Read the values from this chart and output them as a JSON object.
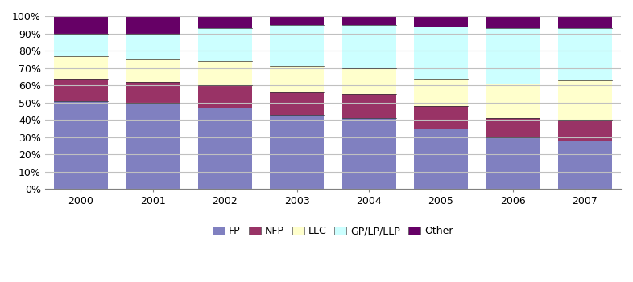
{
  "years": [
    "2000",
    "2001",
    "2002",
    "2003",
    "2004",
    "2005",
    "2006",
    "2007"
  ],
  "segments": [
    "FP",
    "NFP",
    "LLC",
    "GP/LP/LLP",
    "Other"
  ],
  "values": {
    "FP": [
      51,
      50,
      47,
      43,
      41,
      35,
      30,
      28
    ],
    "NFP": [
      13,
      12,
      13,
      13,
      14,
      13,
      11,
      12
    ],
    "LLC": [
      13,
      13,
      14,
      15,
      15,
      16,
      20,
      23
    ],
    "GP/LP/LLP": [
      13,
      15,
      19,
      24,
      25,
      30,
      32,
      30
    ],
    "Other": [
      10,
      10,
      7,
      5,
      5,
      6,
      7,
      7
    ]
  },
  "colors": {
    "FP": "#8080C0",
    "NFP": "#993366",
    "LLC": "#FFFFCC",
    "GP/LP/LLP": "#CCFFFF",
    "Other": "#660066"
  },
  "ylim": [
    0,
    100
  ],
  "ytick_labels": [
    "0%",
    "10%",
    "20%",
    "30%",
    "40%",
    "50%",
    "60%",
    "70%",
    "80%",
    "90%",
    "100%"
  ],
  "ytick_values": [
    0,
    10,
    20,
    30,
    40,
    50,
    60,
    70,
    80,
    90,
    100
  ],
  "background_color": "#FFFFFF",
  "bar_width": 0.75,
  "figsize": [
    7.86,
    3.51
  ],
  "dpi": 100
}
